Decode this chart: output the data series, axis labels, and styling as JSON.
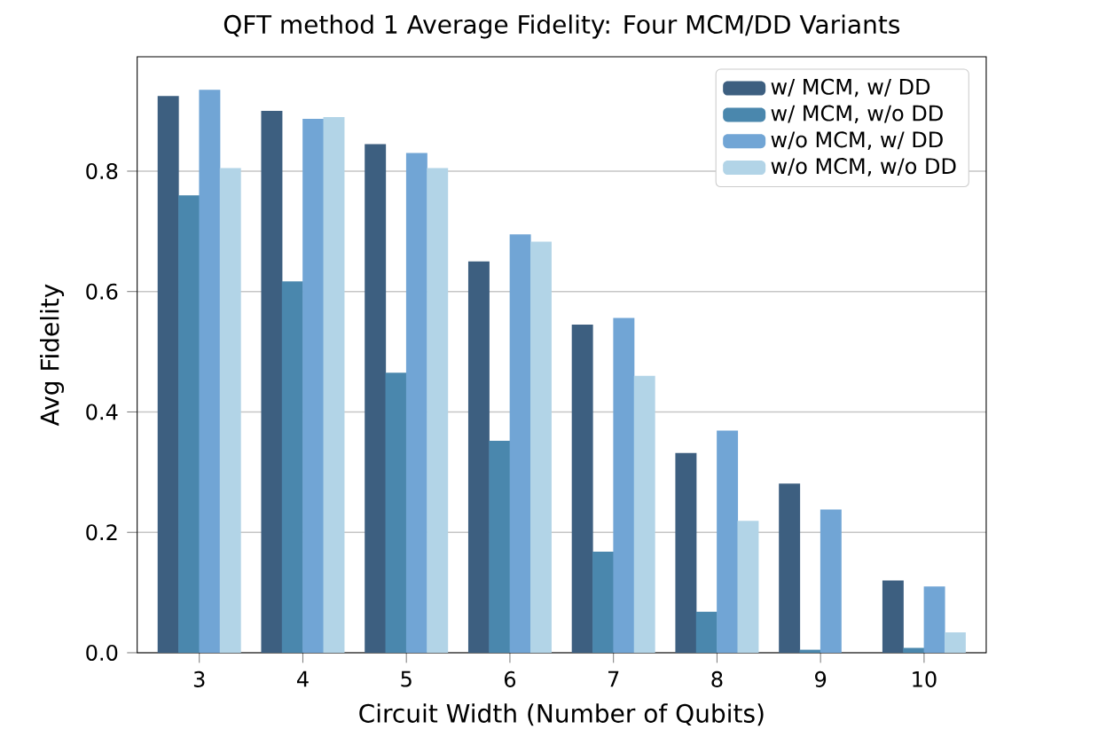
{
  "chart_data": {
    "type": "bar",
    "title": "QFT method 1 Average Fidelity: Four MCM/DD Variants",
    "xlabel": "Circuit Width (Number of Qubits)",
    "ylabel": "Avg Fidelity",
    "categories": [
      "3",
      "4",
      "5",
      "6",
      "7",
      "8",
      "9",
      "10"
    ],
    "series": [
      {
        "name": "w/ MCM, w/ DD",
        "color": "#3d5f80",
        "values": [
          0.925,
          0.9,
          0.845,
          0.65,
          0.545,
          0.332,
          0.281,
          0.12
        ]
      },
      {
        "name": "w/ MCM, w/o DD",
        "color": "#4a87ad",
        "values": [
          0.76,
          0.617,
          0.465,
          0.352,
          0.168,
          0.068,
          0.005,
          0.008
        ]
      },
      {
        "name": "w/o MCM, w/ DD",
        "color": "#71a5d5",
        "values": [
          0.935,
          0.887,
          0.83,
          0.695,
          0.556,
          0.369,
          0.238,
          0.11
        ]
      },
      {
        "name": "w/o MCM, w/o DD",
        "color": "#b2d4e7",
        "values": [
          0.805,
          0.89,
          0.805,
          0.683,
          0.46,
          0.219,
          null,
          0.034
        ]
      }
    ],
    "ylim": [
      0,
      0.99
    ],
    "yticks": [
      {
        "value": 0,
        "label": "0.0"
      },
      {
        "value": 0.2,
        "label": "0.2"
      },
      {
        "value": 0.4,
        "label": "0.4"
      },
      {
        "value": 0.6,
        "label": "0.6"
      },
      {
        "value": 0.8,
        "label": "0.8"
      }
    ],
    "grid": "y",
    "legend": "top right"
  }
}
